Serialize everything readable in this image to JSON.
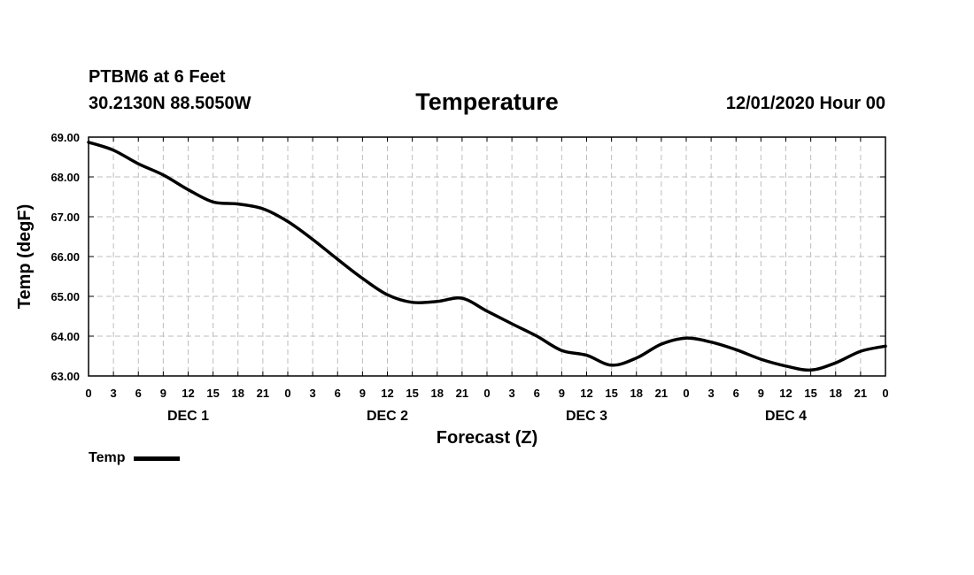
{
  "header": {
    "station": "PTBM6 at 6 Feet",
    "coords": "30.2130N 88.5050W",
    "datetime": "12/01/2020 Hour 00"
  },
  "chart_data": {
    "type": "line",
    "title": "Temperature",
    "xlabel": "Forecast (Z)",
    "ylabel": "Temp (degF)",
    "xlim": [
      0,
      96
    ],
    "ylim": [
      63.0,
      69.0
    ],
    "y_ticks": [
      "63.00",
      "64.00",
      "65.00",
      "66.00",
      "67.00",
      "68.00",
      "69.00"
    ],
    "x_tick_labels": [
      "0",
      "3",
      "6",
      "9",
      "12",
      "15",
      "18",
      "21",
      "0",
      "3",
      "6",
      "9",
      "12",
      "15",
      "18",
      "21",
      "0",
      "3",
      "6",
      "9",
      "12",
      "15",
      "18",
      "21",
      "0",
      "3",
      "6",
      "9",
      "12",
      "15",
      "18",
      "21",
      "0"
    ],
    "day_labels": [
      "DEC 1",
      "DEC 2",
      "DEC 3",
      "DEC 4"
    ],
    "grid": true,
    "legend_position": "bottom-left",
    "series": [
      {
        "name": "Temp",
        "color": "#000000",
        "x": [
          0,
          3,
          6,
          9,
          12,
          15,
          18,
          21,
          24,
          27,
          30,
          33,
          36,
          39,
          42,
          45,
          48,
          51,
          54,
          57,
          60,
          63,
          66,
          69,
          72,
          75,
          78,
          81,
          84,
          87,
          90,
          93,
          96
        ],
        "values": [
          68.87,
          68.67,
          68.33,
          68.05,
          67.68,
          67.37,
          67.32,
          67.2,
          66.88,
          66.43,
          65.93,
          65.45,
          65.04,
          64.85,
          64.87,
          64.95,
          64.63,
          64.31,
          64.0,
          63.64,
          63.52,
          63.27,
          63.45,
          63.8,
          63.95,
          63.85,
          63.66,
          63.42,
          63.25,
          63.15,
          63.33,
          63.62,
          63.75
        ]
      }
    ]
  }
}
